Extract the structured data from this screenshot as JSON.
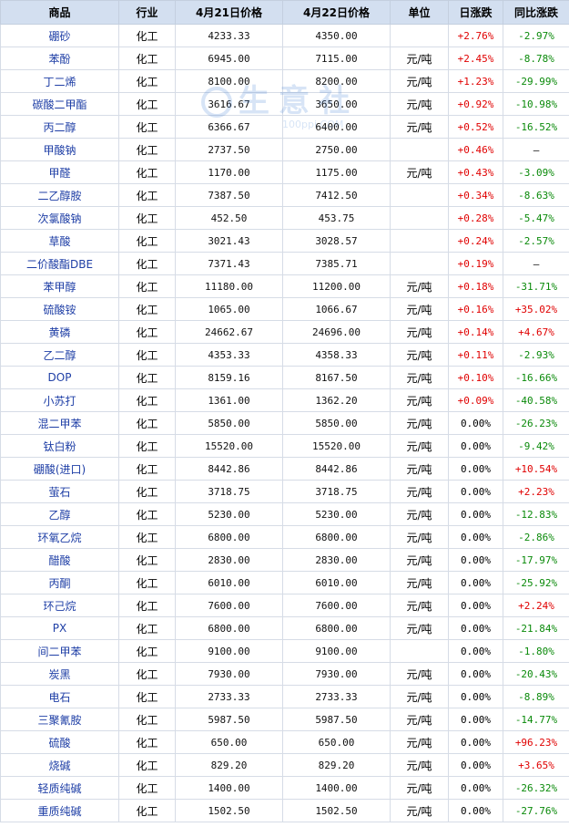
{
  "headers": [
    "商品",
    "行业",
    "4月21日价格",
    "4月22日价格",
    "单位",
    "日涨跌",
    "同比涨跌"
  ],
  "watermark": {
    "name": "生意社",
    "url": "100ppi.COM"
  },
  "colors": {
    "up": "#e00000",
    "down": "#0a8a0a",
    "header_bg": "#d3dff0",
    "name_link": "#1f3fa6"
  },
  "rows": [
    {
      "name": "硼砂",
      "industry": "化工",
      "p1": "4233.33",
      "p2": "4350.00",
      "unit": "",
      "day": "+2.76%",
      "yoy": "-2.97%"
    },
    {
      "name": "苯酚",
      "industry": "化工",
      "p1": "6945.00",
      "p2": "7115.00",
      "unit": "元/吨",
      "day": "+2.45%",
      "yoy": "-8.78%"
    },
    {
      "name": "丁二烯",
      "industry": "化工",
      "p1": "8100.00",
      "p2": "8200.00",
      "unit": "元/吨",
      "day": "+1.23%",
      "yoy": "-29.99%"
    },
    {
      "name": "碳酸二甲酯",
      "industry": "化工",
      "p1": "3616.67",
      "p2": "3650.00",
      "unit": "元/吨",
      "day": "+0.92%",
      "yoy": "-10.98%"
    },
    {
      "name": "丙二醇",
      "industry": "化工",
      "p1": "6366.67",
      "p2": "6400.00",
      "unit": "元/吨",
      "day": "+0.52%",
      "yoy": "-16.52%"
    },
    {
      "name": "甲酸钠",
      "industry": "化工",
      "p1": "2737.50",
      "p2": "2750.00",
      "unit": "",
      "day": "+0.46%",
      "yoy": "—"
    },
    {
      "name": "甲醛",
      "industry": "化工",
      "p1": "1170.00",
      "p2": "1175.00",
      "unit": "元/吨",
      "day": "+0.43%",
      "yoy": "-3.09%"
    },
    {
      "name": "二乙醇胺",
      "industry": "化工",
      "p1": "7387.50",
      "p2": "7412.50",
      "unit": "",
      "day": "+0.34%",
      "yoy": "-8.63%"
    },
    {
      "name": "次氯酸钠",
      "industry": "化工",
      "p1": "452.50",
      "p2": "453.75",
      "unit": "",
      "day": "+0.28%",
      "yoy": "-5.47%"
    },
    {
      "name": "草酸",
      "industry": "化工",
      "p1": "3021.43",
      "p2": "3028.57",
      "unit": "",
      "day": "+0.24%",
      "yoy": "-2.57%"
    },
    {
      "name": "二价酸酯DBE",
      "industry": "化工",
      "p1": "7371.43",
      "p2": "7385.71",
      "unit": "",
      "day": "+0.19%",
      "yoy": "—"
    },
    {
      "name": "苯甲醇",
      "industry": "化工",
      "p1": "11180.00",
      "p2": "11200.00",
      "unit": "元/吨",
      "day": "+0.18%",
      "yoy": "-31.71%"
    },
    {
      "name": "硫酸铵",
      "industry": "化工",
      "p1": "1065.00",
      "p2": "1066.67",
      "unit": "元/吨",
      "day": "+0.16%",
      "yoy": "+35.02%"
    },
    {
      "name": "黄磷",
      "industry": "化工",
      "p1": "24662.67",
      "p2": "24696.00",
      "unit": "元/吨",
      "day": "+0.14%",
      "yoy": "+4.67%"
    },
    {
      "name": "乙二醇",
      "industry": "化工",
      "p1": "4353.33",
      "p2": "4358.33",
      "unit": "元/吨",
      "day": "+0.11%",
      "yoy": "-2.93%"
    },
    {
      "name": "DOP",
      "industry": "化工",
      "p1": "8159.16",
      "p2": "8167.50",
      "unit": "元/吨",
      "day": "+0.10%",
      "yoy": "-16.66%"
    },
    {
      "name": "小苏打",
      "industry": "化工",
      "p1": "1361.00",
      "p2": "1362.20",
      "unit": "元/吨",
      "day": "+0.09%",
      "yoy": "-40.58%"
    },
    {
      "name": "混二甲苯",
      "industry": "化工",
      "p1": "5850.00",
      "p2": "5850.00",
      "unit": "元/吨",
      "day": "0.00%",
      "yoy": "-26.23%"
    },
    {
      "name": "钛白粉",
      "industry": "化工",
      "p1": "15520.00",
      "p2": "15520.00",
      "unit": "元/吨",
      "day": "0.00%",
      "yoy": "-9.42%"
    },
    {
      "name": "硼酸(进口)",
      "industry": "化工",
      "p1": "8442.86",
      "p2": "8442.86",
      "unit": "元/吨",
      "day": "0.00%",
      "yoy": "+10.54%"
    },
    {
      "name": "萤石",
      "industry": "化工",
      "p1": "3718.75",
      "p2": "3718.75",
      "unit": "元/吨",
      "day": "0.00%",
      "yoy": "+2.23%"
    },
    {
      "name": "乙醇",
      "industry": "化工",
      "p1": "5230.00",
      "p2": "5230.00",
      "unit": "元/吨",
      "day": "0.00%",
      "yoy": "-12.83%"
    },
    {
      "name": "环氧乙烷",
      "industry": "化工",
      "p1": "6800.00",
      "p2": "6800.00",
      "unit": "元/吨",
      "day": "0.00%",
      "yoy": "-2.86%"
    },
    {
      "name": "醋酸",
      "industry": "化工",
      "p1": "2830.00",
      "p2": "2830.00",
      "unit": "元/吨",
      "day": "0.00%",
      "yoy": "-17.97%"
    },
    {
      "name": "丙酮",
      "industry": "化工",
      "p1": "6010.00",
      "p2": "6010.00",
      "unit": "元/吨",
      "day": "0.00%",
      "yoy": "-25.92%"
    },
    {
      "name": "环己烷",
      "industry": "化工",
      "p1": "7600.00",
      "p2": "7600.00",
      "unit": "元/吨",
      "day": "0.00%",
      "yoy": "+2.24%"
    },
    {
      "name": "PX",
      "industry": "化工",
      "p1": "6800.00",
      "p2": "6800.00",
      "unit": "元/吨",
      "day": "0.00%",
      "yoy": "-21.84%"
    },
    {
      "name": "间二甲苯",
      "industry": "化工",
      "p1": "9100.00",
      "p2": "9100.00",
      "unit": "",
      "day": "0.00%",
      "yoy": "-1.80%"
    },
    {
      "name": "炭黑",
      "industry": "化工",
      "p1": "7930.00",
      "p2": "7930.00",
      "unit": "元/吨",
      "day": "0.00%",
      "yoy": "-20.43%"
    },
    {
      "name": "电石",
      "industry": "化工",
      "p1": "2733.33",
      "p2": "2733.33",
      "unit": "元/吨",
      "day": "0.00%",
      "yoy": "-8.89%"
    },
    {
      "name": "三聚氰胺",
      "industry": "化工",
      "p1": "5987.50",
      "p2": "5987.50",
      "unit": "元/吨",
      "day": "0.00%",
      "yoy": "-14.77%"
    },
    {
      "name": "硫酸",
      "industry": "化工",
      "p1": "650.00",
      "p2": "650.00",
      "unit": "元/吨",
      "day": "0.00%",
      "yoy": "+96.23%"
    },
    {
      "name": "烧碱",
      "industry": "化工",
      "p1": "829.20",
      "p2": "829.20",
      "unit": "元/吨",
      "day": "0.00%",
      "yoy": "+3.65%"
    },
    {
      "name": "轻质纯碱",
      "industry": "化工",
      "p1": "1400.00",
      "p2": "1400.00",
      "unit": "元/吨",
      "day": "0.00%",
      "yoy": "-26.32%"
    },
    {
      "name": "重质纯碱",
      "industry": "化工",
      "p1": "1502.50",
      "p2": "1502.50",
      "unit": "元/吨",
      "day": "0.00%",
      "yoy": "-27.76%"
    }
  ]
}
